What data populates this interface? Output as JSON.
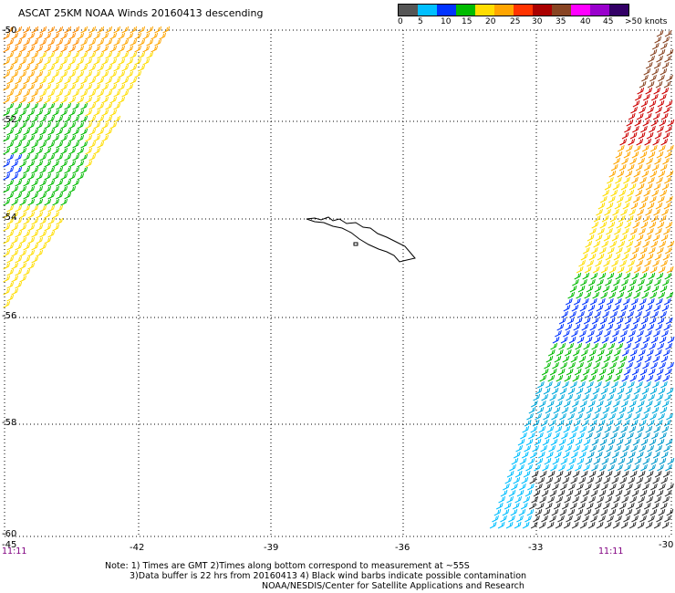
{
  "title": "ASCAT 25KM NOAA Winds 20160413 descending",
  "legend": {
    "colors": [
      "#555555",
      "#00bfff",
      "#0033ff",
      "#00bb00",
      "#ffdd00",
      "#ffa500",
      "#ff3300",
      "#aa0000",
      "#884422",
      "#ff00ff",
      "#9900cc",
      "#330066"
    ],
    "labels": [
      "0",
      "5",
      "10",
      "15",
      "20",
      "25",
      "30",
      "35",
      "40",
      "45",
      ">50 knots"
    ]
  },
  "lat_labels": [
    "-50",
    "-52",
    "-54",
    "-56",
    "-58",
    "-60"
  ],
  "lon_labels": [
    "-45",
    "-42",
    "-39",
    "-36",
    "-33",
    "-30"
  ],
  "times": {
    "left": "11:11",
    "right": "11:11"
  },
  "notes": [
    "Note: 1) Times are GMT 2)Times along bottom correspond to measurement at ~55S",
    "3)Data buffer is 22 hrs from 20160413 4) Black wind barbs indicate possible contamination",
    "NOAA/NESDIS/Center for Satellite Applications and Research"
  ]
}
